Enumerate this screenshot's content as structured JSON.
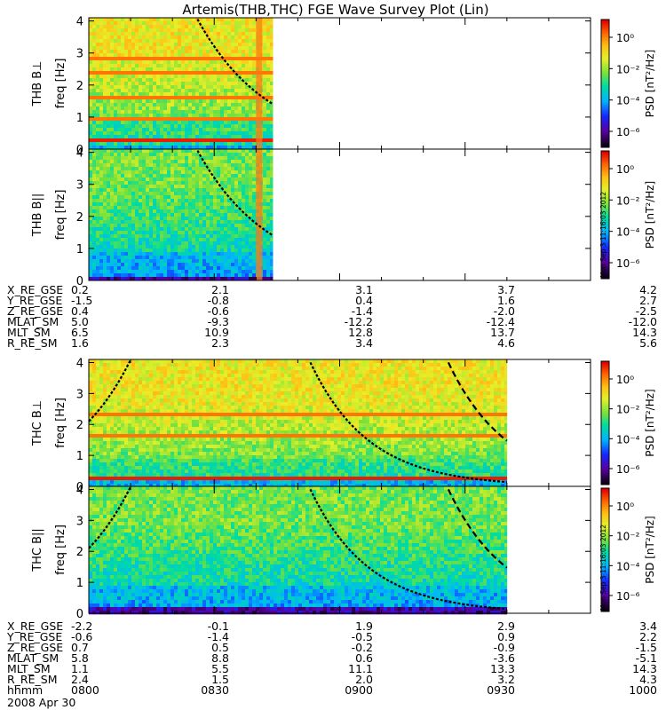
{
  "title": "Artemis(THB,THC) FGE Wave Survey Plot (Lin)",
  "chart_data": [
    {
      "type": "heatmap",
      "panel": "THB-Bperp",
      "ylabel_probe": "THB B⊥",
      "ylabel": "freq [Hz]",
      "ylim": [
        0,
        4.1
      ],
      "yticks": [
        "0",
        "1",
        "2",
        "3",
        "4"
      ],
      "data_end_hhmm": "0844",
      "colorbar_label": "PSD [nT²/Hz]",
      "colorbar_ticks": [
        "10⁰",
        "10⁻²",
        "10⁻⁴",
        "10⁻⁶"
      ],
      "harmonic_lines": "yes",
      "strong_band_hz": 0.27,
      "horizontal_lines_hz": [
        0.97,
        1.65,
        2.35,
        2.8
      ],
      "vertical_spike_hhmm": "0840"
    },
    {
      "type": "heatmap",
      "panel": "THB-Bpar",
      "ylabel_probe": "THB B||",
      "ylabel": "freq [Hz]",
      "ylim": [
        0,
        4.1
      ],
      "yticks": [
        "0",
        "1",
        "2",
        "3",
        "4"
      ],
      "data_end_hhmm": "0844",
      "colorbar_label": "PSD [nT²/Hz]",
      "colorbar_ticks": [
        "10⁰",
        "10⁻²",
        "10⁻⁴",
        "10⁻⁶"
      ],
      "vertical_spike_hhmm": "0840"
    },
    {
      "type": "heatmap",
      "panel": "THC-Bperp",
      "ylabel_probe": "THC B⊥",
      "ylabel": "freq [Hz]",
      "ylim": [
        0,
        4.1
      ],
      "yticks": [
        "0",
        "1",
        "2",
        "3",
        "4"
      ],
      "data_end_hhmm": "0940",
      "colorbar_label": "PSD [nT²/Hz]",
      "colorbar_ticks": [
        "10⁰",
        "10⁻²",
        "10⁻⁴",
        "10⁻⁶"
      ],
      "strong_band_hz": 0.27,
      "horizontal_lines_hz": [
        1.65,
        2.35
      ]
    },
    {
      "type": "heatmap",
      "panel": "THC-Bpar",
      "ylabel_probe": "THC B||",
      "ylabel": "freq [Hz]",
      "ylim": [
        0,
        4.1
      ],
      "yticks": [
        "0",
        "1",
        "2",
        "3",
        "4"
      ],
      "data_end_hhmm": "0940",
      "colorbar_label": "PSD [nT²/Hz]",
      "colorbar_ticks": [
        "10⁰",
        "10⁻²",
        "10⁻⁴",
        "10⁻⁶"
      ]
    }
  ],
  "side_stamp": "Mon Sep 3 11:16:03 2012",
  "ephem_thb": {
    "labels": [
      "X_RE_GSE",
      "Y_RE_GSE",
      "Z_RE_GSE",
      "MLAT_SM",
      "MLT_SM",
      "R_RE_SM"
    ],
    "values": [
      [
        "0.2",
        "2.1",
        "3.1",
        "3.7",
        "4.2"
      ],
      [
        "-1.5",
        "-0.8",
        "0.4",
        "1.6",
        "2.7"
      ],
      [
        "0.4",
        "-0.6",
        "-1.4",
        "-2.0",
        "-2.5"
      ],
      [
        "5.0",
        "-9.3",
        "-12.2",
        "-12.4",
        "-12.0"
      ],
      [
        "6.5",
        "10.9",
        "12.8",
        "13.7",
        "14.3"
      ],
      [
        "1.6",
        "2.3",
        "3.4",
        "4.6",
        "5.6"
      ]
    ]
  },
  "ephem_thc": {
    "labels": [
      "X_RE_GSE",
      "Y_RE_GSE",
      "Z_RE_GSE",
      "MLAT_SM",
      "MLT_SM",
      "R_RE_SM",
      "hhmm"
    ],
    "values": [
      [
        "-2.2",
        "-0.1",
        "1.9",
        "2.9",
        "3.4"
      ],
      [
        "-0.6",
        "-1.4",
        "-0.5",
        "0.9",
        "2.2"
      ],
      [
        "0.7",
        "0.5",
        "-0.2",
        "-0.9",
        "-1.5"
      ],
      [
        "5.8",
        "8.8",
        "0.6",
        "-3.6",
        "-5.1"
      ],
      [
        "1.1",
        "5.5",
        "11.1",
        "13.3",
        "14.3"
      ],
      [
        "2.4",
        "1.5",
        "2.0",
        "3.2",
        "4.3"
      ],
      [
        "0800",
        "0830",
        "0900",
        "0930",
        "1000"
      ]
    ]
  },
  "date": "2008 Apr 30"
}
